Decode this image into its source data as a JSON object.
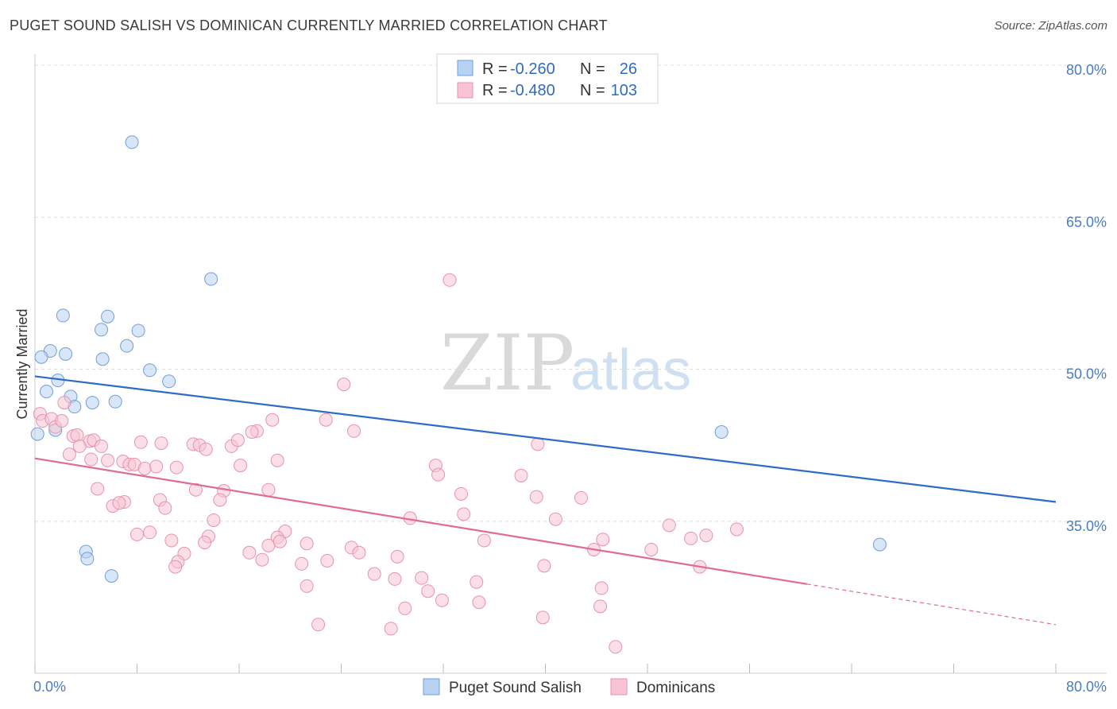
{
  "chart_data": {
    "type": "scatter",
    "title": "PUGET SOUND SALISH VS DOMINICAN CURRENTLY MARRIED CORRELATION CHART",
    "source": "Source: ZipAtlas.com",
    "xlabel": "",
    "ylabel": "Currently Married",
    "xlim": [
      0,
      80
    ],
    "ylim": [
      20,
      82
    ],
    "x_tick_labels": [
      {
        "value": 0,
        "label": "0.0%"
      },
      {
        "value": 80,
        "label": "80.0%"
      }
    ],
    "y_tick_labels": [
      {
        "value": 80,
        "label": "80.0%"
      },
      {
        "value": 65,
        "label": "65.0%"
      },
      {
        "value": 50,
        "label": "50.0%"
      },
      {
        "value": 35,
        "label": "35.0%"
      }
    ],
    "x_minor_ticks": [
      0,
      8,
      16,
      24,
      32,
      40,
      48,
      56,
      64,
      72,
      80
    ],
    "grid": true,
    "watermark": {
      "part1": "ZIP",
      "part2": "atlas"
    },
    "legend": {
      "rows": [
        {
          "r_label": "R =",
          "r_value": "-0.260",
          "n_label": "N =",
          "n_value": "26"
        },
        {
          "r_label": "R =",
          "r_value": "-0.480",
          "n_label": "N =",
          "n_value": "103"
        }
      ]
    },
    "series": [
      {
        "name": "Puget Sound Salish",
        "fill": "#b8d2f2",
        "stroke": "#6e9fd8",
        "line_color": "#2f6bc9",
        "trend": {
          "x0": 0,
          "y0": 49.3,
          "x1": 80,
          "y1": 36.9,
          "solid_to": 80
        },
        "points": [
          [
            7.6,
            72.4
          ],
          [
            13.8,
            58.9
          ],
          [
            2.2,
            55.3
          ],
          [
            5.7,
            55.2
          ],
          [
            5.2,
            53.9
          ],
          [
            8.1,
            53.8
          ],
          [
            1.2,
            51.8
          ],
          [
            2.4,
            51.5
          ],
          [
            0.5,
            51.2
          ],
          [
            5.3,
            51.0
          ],
          [
            7.2,
            52.3
          ],
          [
            9.0,
            49.9
          ],
          [
            1.8,
            48.9
          ],
          [
            10.5,
            48.8
          ],
          [
            0.9,
            47.8
          ],
          [
            2.8,
            47.3
          ],
          [
            4.5,
            46.7
          ],
          [
            6.3,
            46.8
          ],
          [
            3.1,
            46.3
          ],
          [
            1.6,
            44.0
          ],
          [
            0.2,
            43.6
          ],
          [
            53.8,
            43.8
          ],
          [
            4.0,
            32.0
          ],
          [
            4.1,
            31.3
          ],
          [
            6.0,
            29.6
          ],
          [
            66.2,
            32.7
          ]
        ]
      },
      {
        "name": "Dominicans",
        "fill": "#f8c4d4",
        "stroke": "#e892ae",
        "line_color": "#e06b97",
        "trend": {
          "x0": 0,
          "y0": 41.2,
          "x1": 80,
          "y1": 24.8,
          "solid_to": 60.5
        },
        "points": [
          [
            32.5,
            58.8
          ],
          [
            24.2,
            48.5
          ],
          [
            0.4,
            45.6
          ],
          [
            0.6,
            44.9
          ],
          [
            1.3,
            45.1
          ],
          [
            1.6,
            44.3
          ],
          [
            2.1,
            44.9
          ],
          [
            2.3,
            46.7
          ],
          [
            18.6,
            45.0
          ],
          [
            22.8,
            45.0
          ],
          [
            17.4,
            43.9
          ],
          [
            17.0,
            43.8
          ],
          [
            25.0,
            43.9
          ],
          [
            3.0,
            43.4
          ],
          [
            3.3,
            43.5
          ],
          [
            4.3,
            42.9
          ],
          [
            4.6,
            43.0
          ],
          [
            5.2,
            42.4
          ],
          [
            8.3,
            42.8
          ],
          [
            9.9,
            42.7
          ],
          [
            12.4,
            42.6
          ],
          [
            12.9,
            42.5
          ],
          [
            13.4,
            42.1
          ],
          [
            15.4,
            42.4
          ],
          [
            15.9,
            43.0
          ],
          [
            39.4,
            42.6
          ],
          [
            2.7,
            41.6
          ],
          [
            3.5,
            42.4
          ],
          [
            4.4,
            41.1
          ],
          [
            5.7,
            41.0
          ],
          [
            6.9,
            40.9
          ],
          [
            7.4,
            40.6
          ],
          [
            7.8,
            40.6
          ],
          [
            8.6,
            40.2
          ],
          [
            9.5,
            40.4
          ],
          [
            11.1,
            40.3
          ],
          [
            16.1,
            40.5
          ],
          [
            19.0,
            41.0
          ],
          [
            31.4,
            40.5
          ],
          [
            31.6,
            39.6
          ],
          [
            38.1,
            39.5
          ],
          [
            4.9,
            38.2
          ],
          [
            12.6,
            38.1
          ],
          [
            14.8,
            38.0
          ],
          [
            18.3,
            38.1
          ],
          [
            33.4,
            37.7
          ],
          [
            39.3,
            37.4
          ],
          [
            42.8,
            37.3
          ],
          [
            7.0,
            36.9
          ],
          [
            9.8,
            37.1
          ],
          [
            6.1,
            36.5
          ],
          [
            6.6,
            36.8
          ],
          [
            10.2,
            36.3
          ],
          [
            14.5,
            37.1
          ],
          [
            33.6,
            35.7
          ],
          [
            14.0,
            35.1
          ],
          [
            29.4,
            35.3
          ],
          [
            40.8,
            35.2
          ],
          [
            49.7,
            34.6
          ],
          [
            55.0,
            34.2
          ],
          [
            19.6,
            34.0
          ],
          [
            8.0,
            33.7
          ],
          [
            9.0,
            33.9
          ],
          [
            13.6,
            33.5
          ],
          [
            19.0,
            33.4
          ],
          [
            35.2,
            33.1
          ],
          [
            44.5,
            33.2
          ],
          [
            51.4,
            33.3
          ],
          [
            52.6,
            33.6
          ],
          [
            10.7,
            33.1
          ],
          [
            13.3,
            32.9
          ],
          [
            18.3,
            32.6
          ],
          [
            19.2,
            33.0
          ],
          [
            21.3,
            32.8
          ],
          [
            24.8,
            32.4
          ],
          [
            43.8,
            32.2
          ],
          [
            48.3,
            32.2
          ],
          [
            11.7,
            31.8
          ],
          [
            16.8,
            31.9
          ],
          [
            25.4,
            31.9
          ],
          [
            17.8,
            31.2
          ],
          [
            11.2,
            31.0
          ],
          [
            20.9,
            30.8
          ],
          [
            22.9,
            31.1
          ],
          [
            28.4,
            31.5
          ],
          [
            39.9,
            30.6
          ],
          [
            52.1,
            30.5
          ],
          [
            11.0,
            30.5
          ],
          [
            26.6,
            29.8
          ],
          [
            28.2,
            29.3
          ],
          [
            30.3,
            29.4
          ],
          [
            34.6,
            29.0
          ],
          [
            21.3,
            28.6
          ],
          [
            30.8,
            28.1
          ],
          [
            44.4,
            28.4
          ],
          [
            31.9,
            27.2
          ],
          [
            34.8,
            27.0
          ],
          [
            29.0,
            26.4
          ],
          [
            44.3,
            26.6
          ],
          [
            39.8,
            25.5
          ],
          [
            22.2,
            24.8
          ],
          [
            27.9,
            24.4
          ],
          [
            45.5,
            22.6
          ]
        ]
      }
    ]
  }
}
